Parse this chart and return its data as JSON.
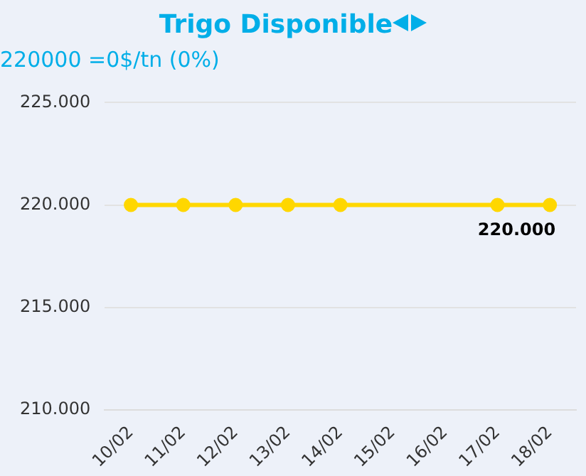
{
  "chart_data": {
    "type": "line",
    "title": "Trigo Disponible",
    "subtitle": "220000 =0$/tn (0%)",
    "categories": [
      "10/02",
      "11/02",
      "12/02",
      "13/02",
      "14/02",
      "15/02",
      "16/02",
      "17/02",
      "18/02"
    ],
    "series": [
      {
        "color": "#ffd700",
        "values": [
          220000,
          220000,
          220000,
          220000,
          220000,
          null,
          null,
          220000,
          220000
        ],
        "value_labels": [
          null,
          null,
          null,
          null,
          null,
          null,
          null,
          null,
          "220.000"
        ]
      }
    ],
    "ylim": [
      210000,
      225000
    ],
    "yticks": [
      {
        "value": 210000,
        "label": "210.000"
      },
      {
        "value": 215000,
        "label": "215.000"
      },
      {
        "value": 220000,
        "label": "220.000"
      },
      {
        "value": 225000,
        "label": "225.000"
      }
    ],
    "grid": "y",
    "legend": false,
    "marker": "circle",
    "line_style": "solid"
  }
}
